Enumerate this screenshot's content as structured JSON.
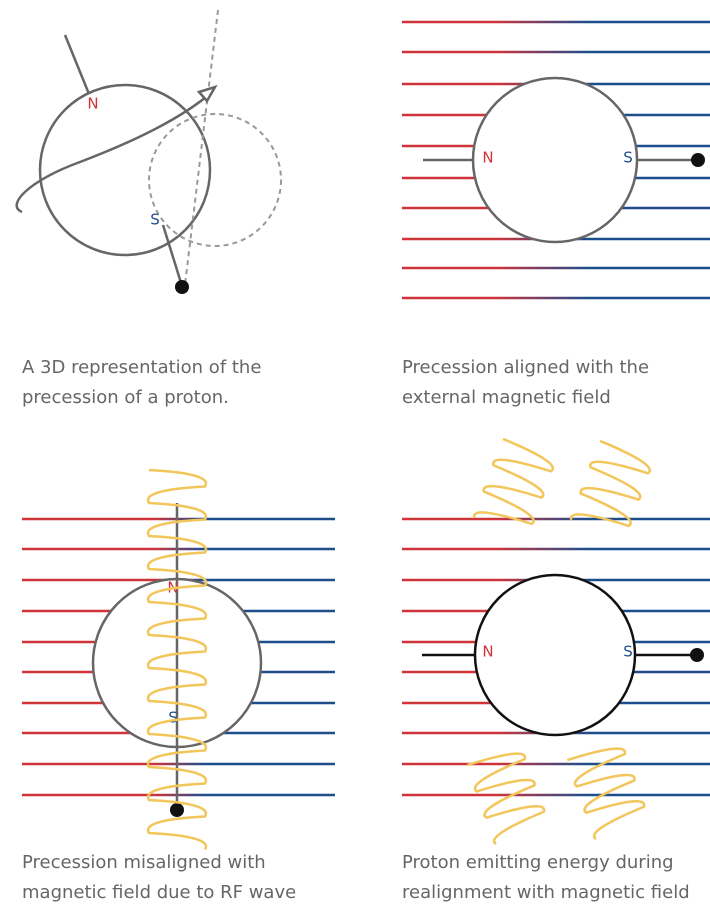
{
  "panels": [
    {
      "north": "N",
      "south": "S",
      "caption": [
        "A 3D representation of the",
        "precession of a proton."
      ]
    },
    {
      "north": "N",
      "south": "S",
      "caption": [
        "Precession aligned with the",
        "external magnetic field"
      ]
    },
    {
      "north": "N",
      "south": "S",
      "caption": [
        "Precession misaligned with",
        "magnetic field due to RF wave"
      ]
    },
    {
      "north": "N",
      "south": "S",
      "caption": [
        "Proton emitting energy during",
        "realignment with magnetic field"
      ]
    }
  ]
}
